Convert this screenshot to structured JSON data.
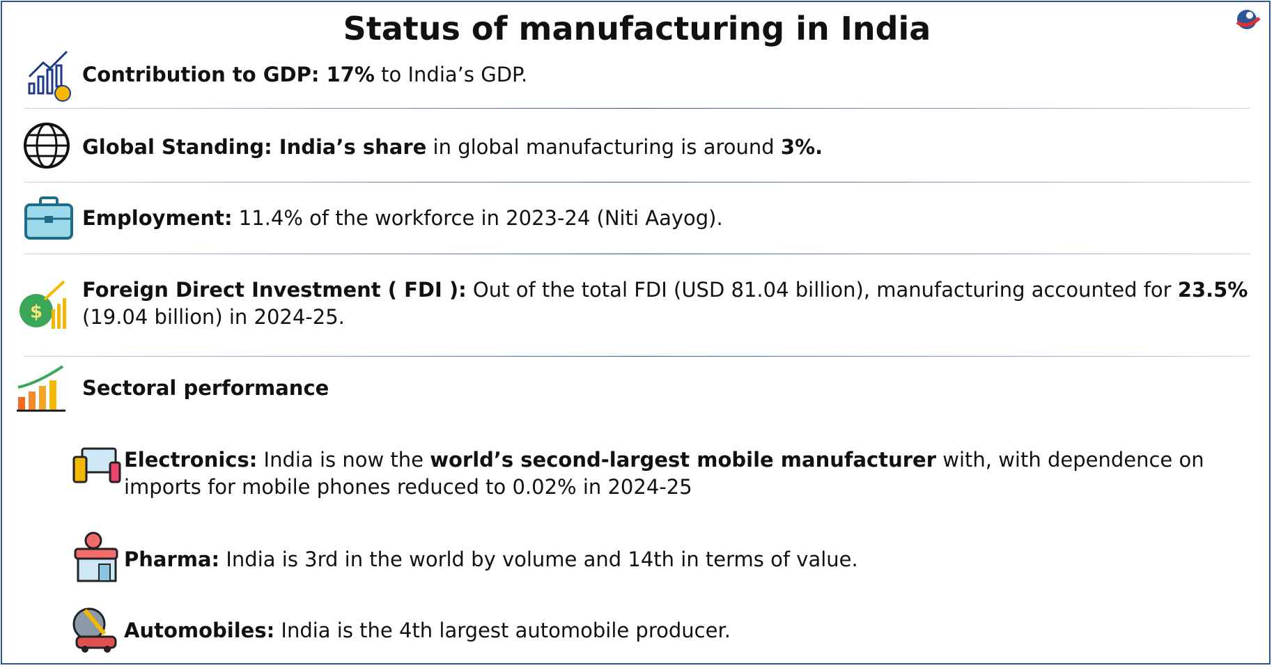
{
  "title": "Status of manufacturing in India",
  "items": [
    {
      "parts": [
        {
          "text": "Contribution to GDP: 17%",
          "bold": true
        },
        {
          "text": " to India’s GDP.",
          "bold": false
        }
      ]
    },
    {
      "parts": [
        {
          "text": "Global Standing: India’s share",
          "bold": true
        },
        {
          "text": " in global manufacturing is around ",
          "bold": false
        },
        {
          "text": "3%.",
          "bold": true
        }
      ]
    },
    {
      "parts": [
        {
          "text": "Employment:",
          "bold": true
        },
        {
          "text": " 11.4% of the workforce in 2023-24 (Niti Aayog).",
          "bold": false
        }
      ]
    },
    {
      "parts": [
        {
          "text": "Foreign Direct Investment ( FDI ):",
          "bold": true
        },
        {
          "text": " Out of the total FDI (USD 81.04 billion), manufacturing accounted for ",
          "bold": false
        },
        {
          "text": "23.5%",
          "bold": true
        },
        {
          "text": " (19.04 billion) in 2024-25.",
          "bold": false
        }
      ]
    },
    {
      "parts": [
        {
          "text": "Sectoral performance",
          "bold": true
        }
      ]
    }
  ],
  "sectors": [
    {
      "parts": [
        {
          "text": "Electronics:",
          "bold": true
        },
        {
          "text": " India is now the ",
          "bold": false
        },
        {
          "text": "world’s second-largest mobile manufacturer",
          "bold": true
        },
        {
          "text": " with, with dependence on imports for mobile phones reduced to 0.02% in 2024-25",
          "bold": false
        }
      ]
    },
    {
      "parts": [
        {
          "text": "Pharma:",
          "bold": true
        },
        {
          "text": " India is 3rd in the world by volume and 14th in terms of value.",
          "bold": false
        }
      ]
    },
    {
      "parts": [
        {
          "text": "Automobiles:",
          "bold": true
        },
        {
          "text": " India is the 4th largest automobile producer.",
          "bold": false
        }
      ]
    }
  ]
}
